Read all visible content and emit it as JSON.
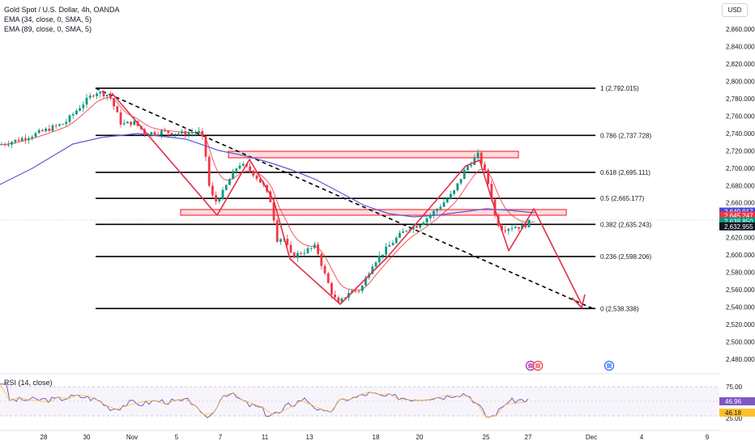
{
  "header": {
    "symbol_line": "Gold Spot / U.S. Dollar, 4h, OANDA",
    "ema1": "EMA (34, close, 0, SMA, 5)",
    "ema2": "EMA (89, close, 0, SMA, 5)",
    "currency": "USD"
  },
  "rsi_title": "RSI (14, close)",
  "colors": {
    "up": "#089981",
    "down": "#f23645",
    "ema34": "#f23645",
    "ema89": "#5b5bd6",
    "fib": "#000000",
    "zone": "#f23645",
    "pattern": "#e0304a",
    "rsi": "#7e57c2",
    "rsi_ma": "#fbc02d"
  },
  "chart_data": {
    "type": "line",
    "title": "Gold Spot / U.S. Dollar, 4h, OANDA",
    "ylim": [
      2466,
      2874
    ],
    "price_ticks": [
      "2,860.000",
      "2,840.000",
      "2,820.000",
      "2,800.000",
      "2,780.000",
      "2,760.000",
      "2,740.000",
      "2,720.000",
      "2,700.000",
      "2,680.000",
      "2,660.000",
      "2,640.000",
      "2,620.000",
      "2,600.000",
      "2,580.000",
      "2,560.000",
      "2,540.000",
      "2,520.000",
      "2,500.000",
      "2,480.000"
    ],
    "x_ticks": [
      "28",
      "30",
      "Nov",
      "5",
      "7",
      "11",
      "13",
      "18",
      "20",
      "25",
      "27",
      "Dec",
      "4",
      "9"
    ],
    "fib_levels": [
      {
        "label": "1 (2,792.015)",
        "price": 2792.015
      },
      {
        "label": "0.786 (2,737.728)",
        "price": 2737.728
      },
      {
        "label": "0.618 (2,695.111)",
        "price": 2695.111
      },
      {
        "label": "0.5 (2,665.177)",
        "price": 2665.177
      },
      {
        "label": "0.382 (2,635.243)",
        "price": 2635.243
      },
      {
        "label": "0.236 (2,598.206)",
        "price": 2598.206
      },
      {
        "label": "0 (2,538.338)",
        "price": 2538.338
      }
    ],
    "price_badges": [
      {
        "text": "2,649.917",
        "price": 2649.917,
        "color": "#4a4ad4"
      },
      {
        "text": "2,645.247",
        "price": 2645.247,
        "color": "#f23645"
      },
      {
        "text": "2,638.850",
        "price": 2638.85,
        "color": "#089981",
        "sub": "01:04:36"
      },
      {
        "text": "2,632.955",
        "price": 2632.955,
        "color": "#131722"
      }
    ],
    "rsi_ticks": [
      "75.00",
      "25.00"
    ],
    "rsi_badges": [
      {
        "text": "46.96",
        "color": "#7e57c2"
      },
      {
        "text": "46.18",
        "color": "#fbc02d"
      }
    ],
    "close_series": [
      [
        "Oct 24",
        2730
      ],
      [
        "Oct 25",
        2737
      ],
      [
        "Oct 28",
        2748
      ],
      [
        "Oct 29",
        2770
      ],
      [
        "Oct 30",
        2788
      ],
      [
        "Oct 31",
        2745
      ],
      [
        "Nov 1",
        2740
      ],
      [
        "Nov 4",
        2742
      ],
      [
        "Nov 5",
        2742
      ],
      [
        "Nov 6",
        2660
      ],
      [
        "Nov 7",
        2700
      ],
      [
        "Nov 8",
        2685
      ],
      [
        "Nov 11",
        2616
      ],
      [
        "Nov 12",
        2600
      ],
      [
        "Nov 13",
        2570
      ],
      [
        "Nov 14",
        2550
      ],
      [
        "Nov 15",
        2560
      ],
      [
        "Nov 18",
        2610
      ],
      [
        "Nov 19",
        2630
      ],
      [
        "Nov 20",
        2650
      ],
      [
        "Nov 21",
        2670
      ],
      [
        "Nov 22",
        2712
      ],
      [
        "Nov 25",
        2628
      ],
      [
        "Nov 26",
        2625
      ],
      [
        "Nov 27",
        2639
      ]
    ]
  }
}
